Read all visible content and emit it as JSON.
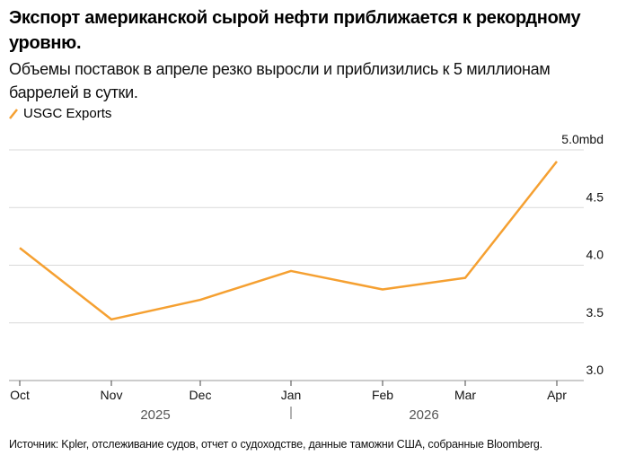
{
  "title": "Экспорт американской сырой нефти приближается к рекордному уровню.",
  "subtitle": "Объемы поставок в апреле резко выросли и приблизились к 5 миллионам баррелей в сутки.",
  "source": "Источник: Kpler, отслеживание судов, отчет о судоходстве, данные таможни США, собранные Bloomberg.",
  "colors": {
    "series": "#f5a031",
    "grid": "#d9d9d9",
    "axis": "#444444"
  },
  "chart_data": {
    "type": "line",
    "categories": [
      "Oct",
      "Nov",
      "Dec",
      "Jan",
      "Feb",
      "Mar",
      "Apr"
    ],
    "year_labels": [
      "2025",
      "2026"
    ],
    "series": [
      {
        "name": "USGC Exports",
        "values": [
          4.15,
          3.53,
          3.7,
          3.95,
          3.79,
          3.89,
          4.9
        ]
      }
    ],
    "yticks": [
      "3.0",
      "3.5",
      "4.0",
      "4.5",
      "5.0mbd"
    ],
    "ytick_values": [
      3.0,
      3.5,
      4.0,
      4.5,
      5.0
    ],
    "ylim": [
      3.0,
      5.0
    ],
    "grid": true,
    "y_axis_side": "right",
    "legend_placement": "top-left"
  }
}
